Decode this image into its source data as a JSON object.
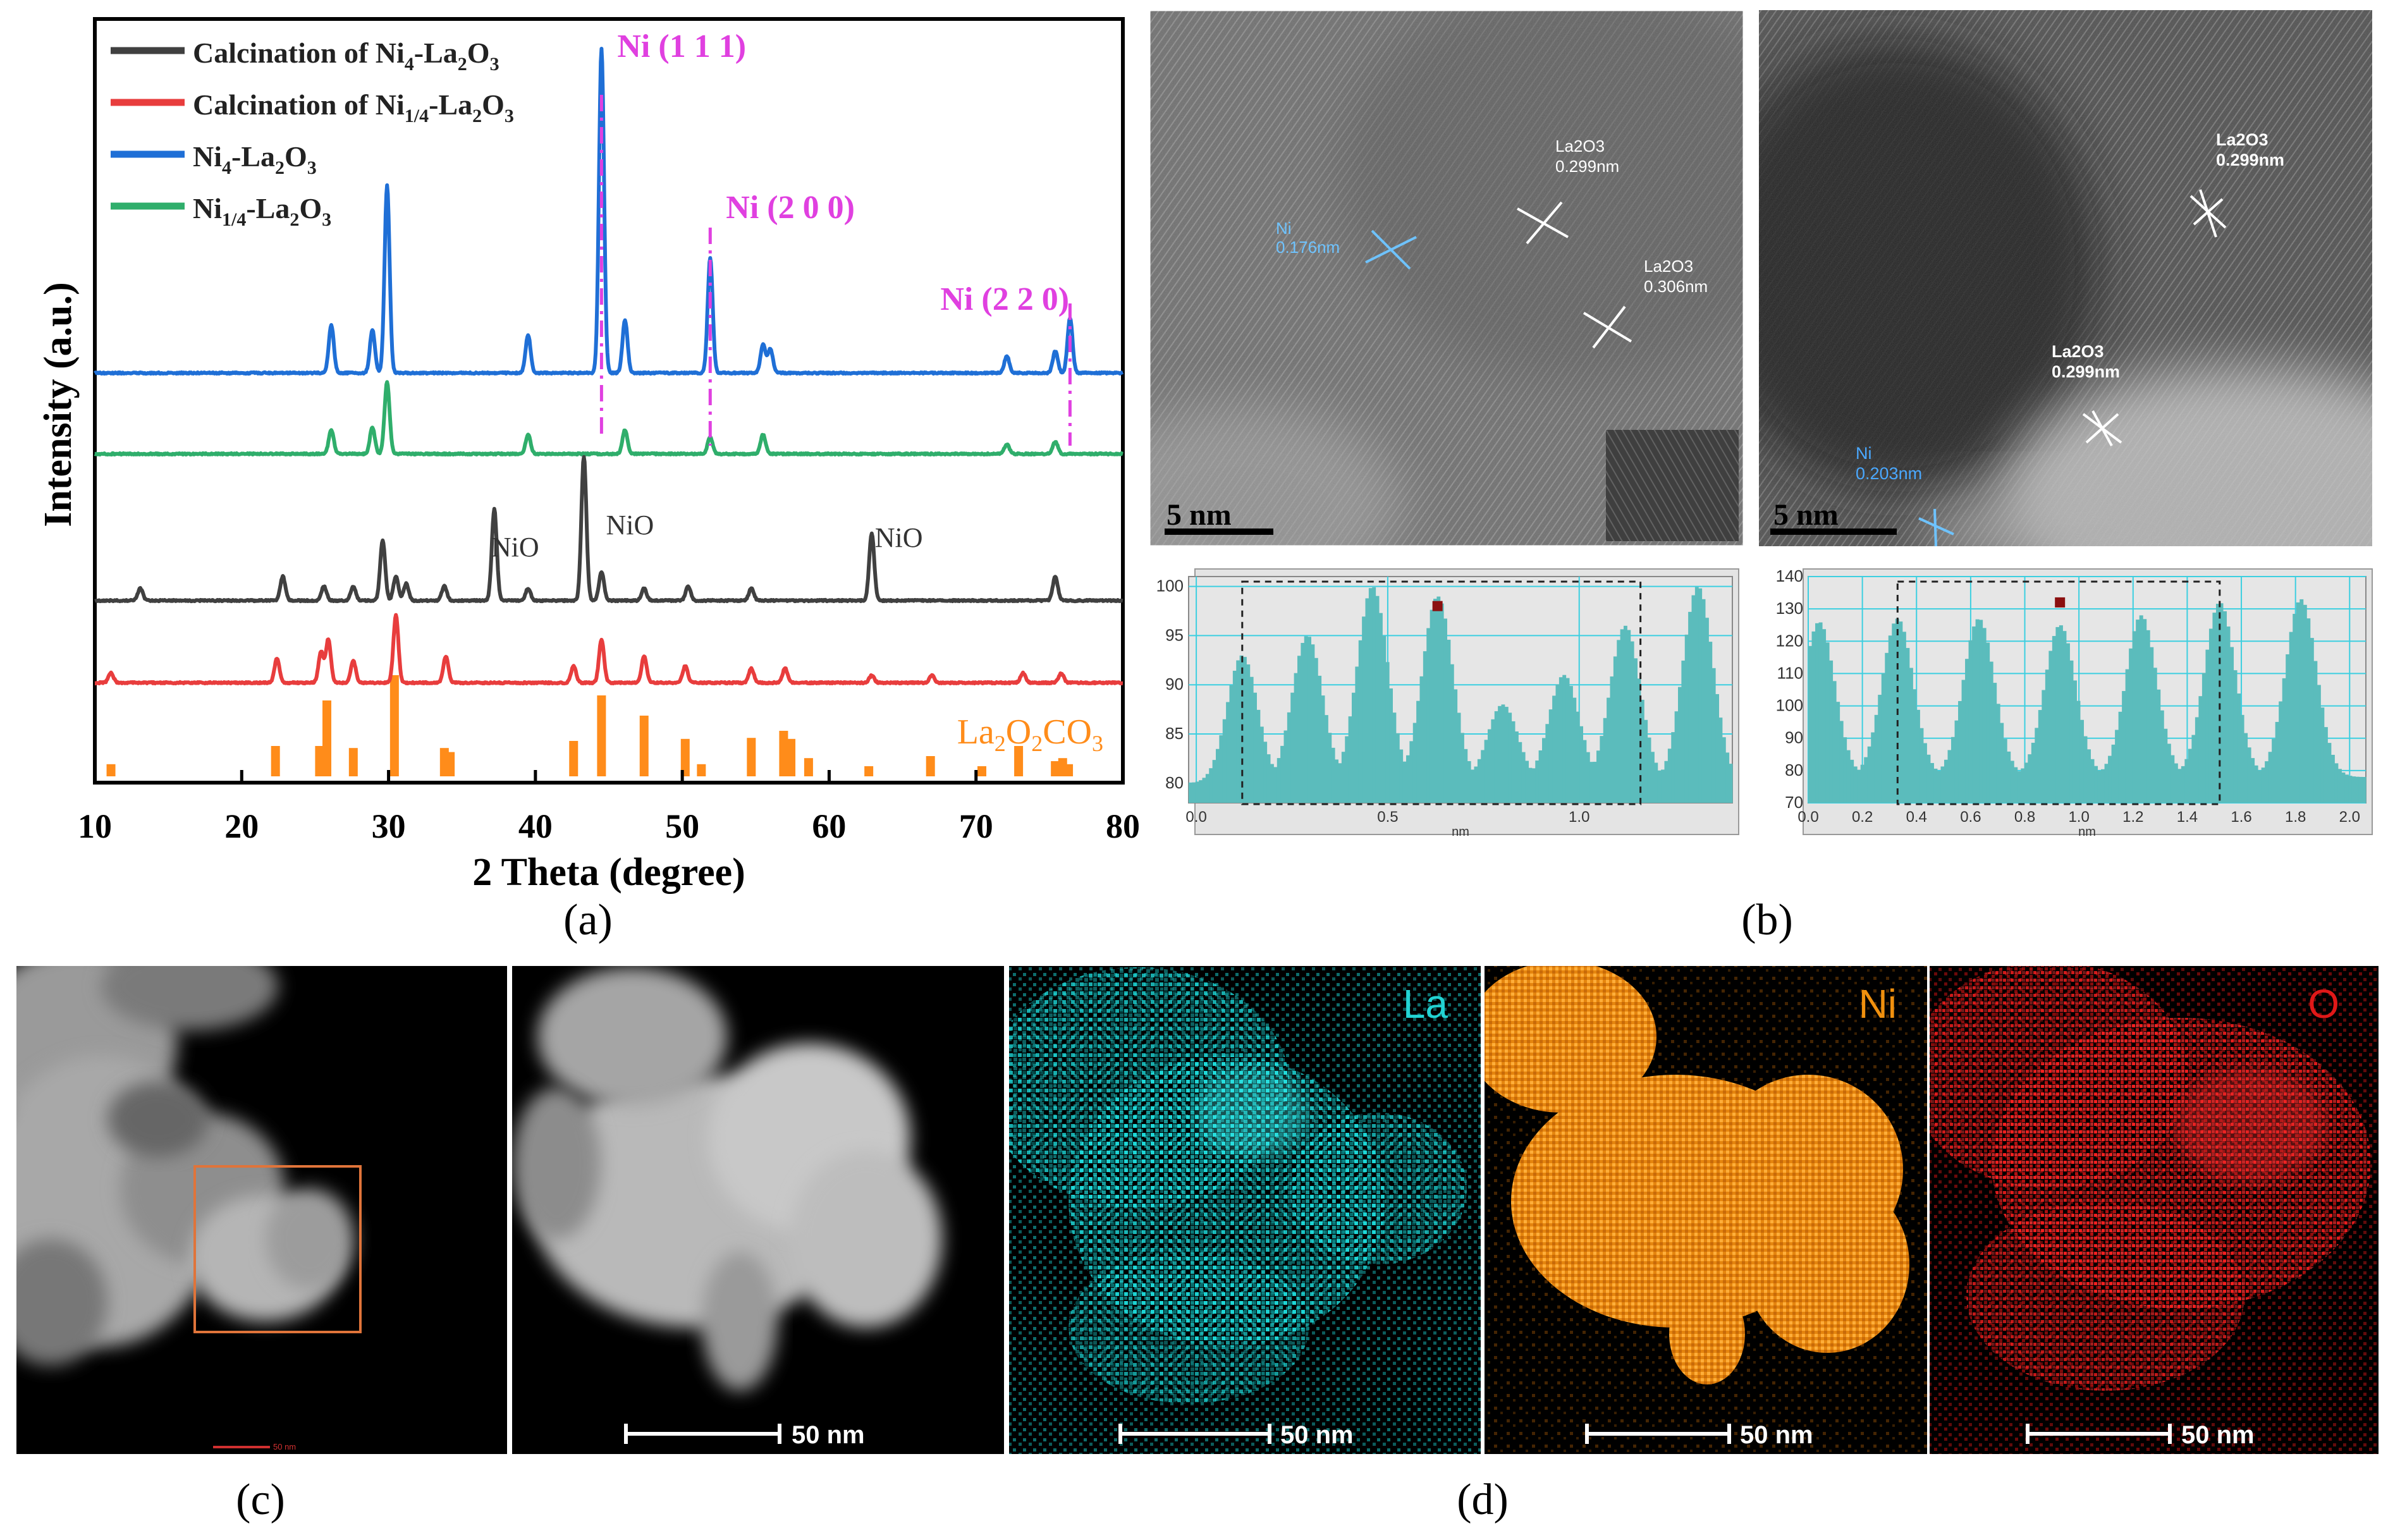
{
  "chart_data": {
    "type": "line",
    "panel_a": {
      "xlabel": "2 Theta (degree)",
      "ylabel": "Intensity (a.u.)",
      "xlim": [
        10,
        80
      ],
      "xticks": [
        10,
        20,
        30,
        40,
        50,
        60,
        70,
        80
      ],
      "legend": [
        {
          "name": "Calcination of Ni4-La2O3",
          "color": "#404040"
        },
        {
          "name": "Calcination of Ni1/4-La2O3",
          "color": "#e83d3d"
        },
        {
          "name": "Ni4-La2O3",
          "color": "#1f6fd6"
        },
        {
          "name": "Ni1/4-La2O3",
          "color": "#2fae6b"
        }
      ],
      "series": [
        {
          "name": "Ni4-La2O3",
          "color": "#1f6fd6",
          "offset": 590,
          "scale": 380,
          "peaks": [
            [
              26.1,
              0.2
            ],
            [
              28.9,
              0.18
            ],
            [
              29.9,
              0.78
            ],
            [
              39.5,
              0.16
            ],
            [
              44.5,
              1.35
            ],
            [
              46.1,
              0.22
            ],
            [
              51.9,
              0.48
            ],
            [
              55.5,
              0.12
            ],
            [
              56.0,
              0.1
            ],
            [
              72.1,
              0.07
            ],
            [
              75.4,
              0.09
            ],
            [
              76.4,
              0.23
            ]
          ]
        },
        {
          "name": "Ni1/4-La2O3",
          "color": "#2fae6b",
          "offset": 718,
          "scale": 380,
          "peaks": [
            [
              26.1,
              0.1
            ],
            [
              28.9,
              0.11
            ],
            [
              29.9,
              0.3
            ],
            [
              39.5,
              0.08
            ],
            [
              46.1,
              0.1
            ],
            [
              51.9,
              0.07
            ],
            [
              55.5,
              0.08
            ],
            [
              72.1,
              0.04
            ],
            [
              75.4,
              0.05
            ]
          ]
        },
        {
          "name": "Calcination of Ni4-La2O3",
          "color": "#404040",
          "offset": 950,
          "scale": 380,
          "peaks": [
            [
              13.1,
              0.05
            ],
            [
              22.8,
              0.1
            ],
            [
              25.6,
              0.06
            ],
            [
              27.6,
              0.06
            ],
            [
              29.6,
              0.25
            ],
            [
              30.5,
              0.1
            ],
            [
              31.2,
              0.07
            ],
            [
              33.8,
              0.06
            ],
            [
              37.2,
              0.38
            ],
            [
              39.5,
              0.05
            ],
            [
              43.3,
              0.6
            ],
            [
              44.5,
              0.12
            ],
            [
              47.4,
              0.05
            ],
            [
              50.4,
              0.06
            ],
            [
              54.7,
              0.05
            ],
            [
              62.9,
              0.28
            ],
            [
              75.4,
              0.1
            ]
          ]
        },
        {
          "name": "Calcination of Ni1/4-La2O3",
          "color": "#e83d3d",
          "offset": 1080,
          "scale": 380,
          "peaks": [
            [
              11.1,
              0.04
            ],
            [
              22.4,
              0.1
            ],
            [
              25.4,
              0.13
            ],
            [
              25.9,
              0.18
            ],
            [
              27.6,
              0.09
            ],
            [
              30.5,
              0.28
            ],
            [
              33.9,
              0.11
            ],
            [
              42.6,
              0.07
            ],
            [
              44.5,
              0.18
            ],
            [
              47.4,
              0.11
            ],
            [
              50.2,
              0.07
            ],
            [
              54.7,
              0.06
            ],
            [
              57.0,
              0.06
            ],
            [
              62.9,
              0.03
            ],
            [
              67.0,
              0.03
            ],
            [
              73.2,
              0.04
            ],
            [
              75.8,
              0.04
            ]
          ]
        }
      ],
      "reference": {
        "label": "La2O2CO3",
        "color": "#ff8c1a",
        "bars": [
          [
            11.1,
            0.12
          ],
          [
            22.3,
            0.3
          ],
          [
            25.3,
            0.3
          ],
          [
            25.8,
            0.75
          ],
          [
            27.6,
            0.28
          ],
          [
            30.4,
            1.0
          ],
          [
            33.8,
            0.28
          ],
          [
            34.2,
            0.24
          ],
          [
            42.6,
            0.35
          ],
          [
            44.5,
            0.8
          ],
          [
            47.4,
            0.6
          ],
          [
            50.2,
            0.37
          ],
          [
            51.3,
            0.12
          ],
          [
            54.7,
            0.38
          ],
          [
            56.9,
            0.45
          ],
          [
            57.4,
            0.37
          ],
          [
            58.6,
            0.18
          ],
          [
            62.7,
            0.1
          ],
          [
            66.9,
            0.2
          ],
          [
            70.4,
            0.1
          ],
          [
            72.9,
            0.3
          ],
          [
            75.4,
            0.15
          ],
          [
            75.9,
            0.18
          ],
          [
            76.3,
            0.12
          ]
        ]
      },
      "annotations": [
        {
          "label": "Ni (1 1 1)",
          "x": 44.5
        },
        {
          "label": "Ni (2 0 0)",
          "x": 51.9
        },
        {
          "label": "Ni (2 2 0)",
          "x": 76.4
        }
      ],
      "nio_labels": [
        {
          "label": "NiO",
          "x": 37.2
        },
        {
          "label": "NiO",
          "x": 43.3
        },
        {
          "label": "NiO",
          "x": 62.9
        }
      ]
    },
    "profile_left": {
      "xlim": [
        -0.02,
        1.4
      ],
      "ylim": [
        78,
        101
      ],
      "xticks": [
        0.0,
        0.5,
        1.0
      ],
      "yticks": [
        80,
        85,
        90,
        95,
        100
      ],
      "xlabel": "nm",
      "peaks": [
        [
          0.12,
          93
        ],
        [
          0.29,
          95
        ],
        [
          0.46,
          100
        ],
        [
          0.63,
          99
        ],
        [
          0.8,
          88
        ],
        [
          0.96,
          91
        ],
        [
          1.12,
          96
        ],
        [
          1.31,
          100
        ]
      ],
      "baseline": 80
    },
    "profile_right": {
      "xlim": [
        0,
        2.06
      ],
      "ylim": [
        70,
        140
      ],
      "xticks": [
        0.0,
        0.2,
        0.4,
        0.6,
        0.8,
        1.0,
        1.2,
        1.4,
        1.6,
        1.8,
        2.0
      ],
      "yticks": [
        70,
        80,
        90,
        100,
        110,
        120,
        130,
        140
      ],
      "xlabel": "nm",
      "peaks": [
        [
          0.04,
          126
        ],
        [
          0.33,
          127
        ],
        [
          0.63,
          127
        ],
        [
          0.93,
          125
        ],
        [
          1.23,
          128
        ],
        [
          1.52,
          132
        ],
        [
          1.82,
          133
        ]
      ],
      "baseline": 78
    }
  },
  "panel_labels": {
    "a": "(a)",
    "b": "(b)",
    "c": "(c)",
    "d": "(d)"
  },
  "tem_left": {
    "scale": "5 nm",
    "ni": {
      "name": "Ni",
      "d": "0.176nm"
    },
    "la1": {
      "name": "La2O3",
      "d": "0.299nm"
    },
    "la2": {
      "name": "La2O3",
      "d": "0.306nm"
    }
  },
  "tem_right": {
    "scale": "5 nm",
    "la1": {
      "name": "La2O3",
      "d": "0.299nm"
    },
    "la2": {
      "name": "La2O3",
      "d": "0.299nm"
    },
    "ni": {
      "name": "Ni",
      "d": "0.203nm"
    }
  },
  "eds": {
    "haadf_scale": "50 nm",
    "zoom_scale": "50 nm",
    "maps": [
      {
        "element": "La",
        "color": "#22d3d3",
        "scale": "50 nm"
      },
      {
        "element": "Ni",
        "color": "#f0900e",
        "scale": "50 nm"
      },
      {
        "element": "O",
        "color": "#e01818",
        "scale": "50 nm"
      }
    ]
  }
}
